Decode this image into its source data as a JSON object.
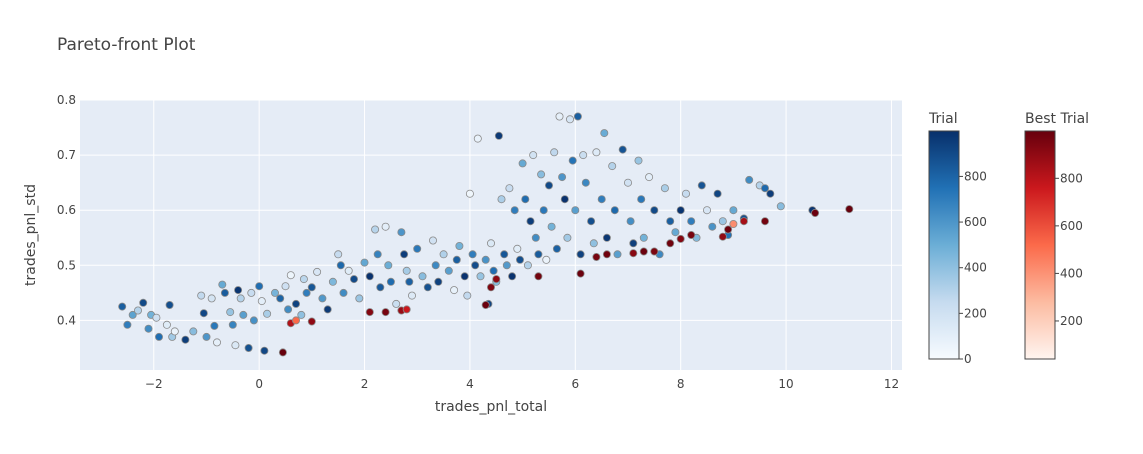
{
  "chart_data": {
    "type": "scatter",
    "title": "Pareto-front Plot",
    "xlabel": "trades_pnl_total",
    "ylabel": "trades_pnl_std",
    "xlim": [
      -3.4,
      12.2
    ],
    "ylim": [
      0.31,
      0.8
    ],
    "xticks": [
      -2,
      0,
      2,
      4,
      6,
      8,
      10,
      12
    ],
    "yticks": [
      0.4,
      0.5,
      0.6,
      0.7,
      0.8
    ],
    "grid": true,
    "colorbars": [
      {
        "title": "Trial",
        "colorscale": "Blues",
        "range": [
          0,
          999
        ],
        "ticks": [
          0,
          200,
          400,
          600,
          800
        ]
      },
      {
        "title": "Best Trial",
        "colorscale": "Reds",
        "range": [
          40,
          999
        ],
        "ticks": [
          200,
          400,
          600,
          800
        ]
      }
    ],
    "series": [
      {
        "colorscale": "Blues",
        "points": [
          [
            -2.6,
            0.425,
            820
          ],
          [
            -2.5,
            0.392,
            700
          ],
          [
            -2.4,
            0.41,
            550
          ],
          [
            -2.3,
            0.418,
            300
          ],
          [
            -2.2,
            0.432,
            900
          ],
          [
            -2.1,
            0.385,
            640
          ],
          [
            -2.05,
            0.41,
            480
          ],
          [
            -1.95,
            0.405,
            200
          ],
          [
            -1.9,
            0.37,
            760
          ],
          [
            -1.75,
            0.392,
            120
          ],
          [
            -1.7,
            0.428,
            880
          ],
          [
            -1.65,
            0.37,
            350
          ],
          [
            -1.6,
            0.38,
            60
          ],
          [
            -1.4,
            0.365,
            950
          ],
          [
            -1.25,
            0.38,
            420
          ],
          [
            -1.1,
            0.445,
            260
          ],
          [
            -1.05,
            0.413,
            910
          ],
          [
            -1.0,
            0.37,
            600
          ],
          [
            -0.9,
            0.44,
            180
          ],
          [
            -0.85,
            0.39,
            720
          ],
          [
            -0.8,
            0.36,
            90
          ],
          [
            -0.7,
            0.465,
            520
          ],
          [
            -0.65,
            0.45,
            830
          ],
          [
            -0.55,
            0.415,
            380
          ],
          [
            -0.5,
            0.392,
            670
          ],
          [
            -0.45,
            0.355,
            150
          ],
          [
            -0.4,
            0.455,
            980
          ],
          [
            -0.35,
            0.44,
            300
          ],
          [
            -0.3,
            0.41,
            560
          ],
          [
            -0.2,
            0.35,
            870
          ],
          [
            -0.15,
            0.45,
            240
          ],
          [
            -0.1,
            0.4,
            620
          ],
          [
            0.0,
            0.462,
            760
          ],
          [
            0.05,
            0.435,
            100
          ],
          [
            0.1,
            0.345,
            910
          ],
          [
            0.15,
            0.412,
            330
          ],
          [
            0.3,
            0.45,
            470
          ],
          [
            0.4,
            0.44,
            800
          ],
          [
            0.5,
            0.462,
            210
          ],
          [
            0.55,
            0.42,
            640
          ],
          [
            0.6,
            0.482,
            50
          ],
          [
            0.7,
            0.43,
            930
          ],
          [
            0.8,
            0.41,
            400
          ],
          [
            0.85,
            0.475,
            280
          ],
          [
            0.9,
            0.45,
            700
          ],
          [
            1.0,
            0.46,
            850
          ],
          [
            1.1,
            0.488,
            160
          ],
          [
            1.2,
            0.44,
            590
          ],
          [
            1.3,
            0.42,
            960
          ],
          [
            1.4,
            0.47,
            450
          ],
          [
            1.5,
            0.52,
            250
          ],
          [
            1.55,
            0.5,
            780
          ],
          [
            1.6,
            0.45,
            640
          ],
          [
            1.7,
            0.49,
            120
          ],
          [
            1.8,
            0.475,
            900
          ],
          [
            1.9,
            0.44,
            370
          ],
          [
            2.0,
            0.505,
            530
          ],
          [
            2.1,
            0.48,
            990
          ],
          [
            2.2,
            0.565,
            290
          ],
          [
            2.25,
            0.52,
            680
          ],
          [
            2.3,
            0.46,
            840
          ],
          [
            2.4,
            0.57,
            100
          ],
          [
            2.45,
            0.5,
            500
          ],
          [
            2.5,
            0.47,
            770
          ],
          [
            2.6,
            0.43,
            230
          ],
          [
            2.7,
            0.56,
            600
          ],
          [
            2.75,
            0.52,
            950
          ],
          [
            2.8,
            0.49,
            340
          ],
          [
            2.85,
            0.47,
            810
          ],
          [
            2.9,
            0.445,
            140
          ],
          [
            3.0,
            0.53,
            720
          ],
          [
            3.1,
            0.48,
            420
          ],
          [
            3.2,
            0.46,
            870
          ],
          [
            3.3,
            0.545,
            200
          ],
          [
            3.35,
            0.5,
            650
          ],
          [
            3.4,
            0.47,
            930
          ],
          [
            3.5,
            0.52,
            310
          ],
          [
            3.6,
            0.49,
            560
          ],
          [
            3.7,
            0.455,
            80
          ],
          [
            3.75,
            0.51,
            820
          ],
          [
            3.8,
            0.535,
            480
          ],
          [
            3.9,
            0.48,
            990
          ],
          [
            3.95,
            0.445,
            260
          ],
          [
            4.0,
            0.63,
            40
          ],
          [
            4.05,
            0.52,
            700
          ],
          [
            4.1,
            0.5,
            890
          ],
          [
            4.15,
            0.73,
            70
          ],
          [
            4.2,
            0.48,
            380
          ],
          [
            4.3,
            0.51,
            610
          ],
          [
            4.35,
            0.43,
            920
          ],
          [
            4.4,
            0.54,
            150
          ],
          [
            4.45,
            0.49,
            760
          ],
          [
            4.5,
            0.47,
            430
          ],
          [
            4.55,
            0.735,
            960
          ],
          [
            4.6,
            0.62,
            320
          ],
          [
            4.65,
            0.52,
            850
          ],
          [
            4.7,
            0.5,
            580
          ],
          [
            4.75,
            0.64,
            240
          ],
          [
            4.8,
            0.48,
            990
          ],
          [
            4.85,
            0.6,
            700
          ],
          [
            4.9,
            0.53,
            110
          ],
          [
            4.95,
            0.51,
            880
          ],
          [
            5.0,
            0.685,
            520
          ],
          [
            5.05,
            0.62,
            770
          ],
          [
            5.1,
            0.5,
            300
          ],
          [
            5.15,
            0.58,
            950
          ],
          [
            5.2,
            0.7,
            190
          ],
          [
            5.25,
            0.55,
            640
          ],
          [
            5.3,
            0.52,
            830
          ],
          [
            5.35,
            0.665,
            420
          ],
          [
            5.4,
            0.6,
            720
          ],
          [
            5.45,
            0.51,
            60
          ],
          [
            5.5,
            0.645,
            900
          ],
          [
            5.55,
            0.57,
            480
          ],
          [
            5.6,
            0.705,
            270
          ],
          [
            5.65,
            0.53,
            810
          ],
          [
            5.7,
            0.77,
            90
          ],
          [
            5.75,
            0.66,
            600
          ],
          [
            5.8,
            0.62,
            990
          ],
          [
            5.85,
            0.55,
            350
          ],
          [
            5.9,
            0.765,
            170
          ],
          [
            5.95,
            0.69,
            740
          ],
          [
            6.0,
            0.6,
            560
          ],
          [
            6.05,
            0.77,
            820
          ],
          [
            6.1,
            0.52,
            930
          ],
          [
            6.15,
            0.7,
            230
          ],
          [
            6.2,
            0.65,
            660
          ],
          [
            6.3,
            0.58,
            880
          ],
          [
            6.35,
            0.54,
            400
          ],
          [
            6.4,
            0.705,
            130
          ],
          [
            6.5,
            0.62,
            700
          ],
          [
            6.55,
            0.74,
            510
          ],
          [
            6.6,
            0.55,
            970
          ],
          [
            6.7,
            0.68,
            300
          ],
          [
            6.75,
            0.6,
            780
          ],
          [
            6.8,
            0.52,
            560
          ],
          [
            6.9,
            0.71,
            860
          ],
          [
            7.0,
            0.65,
            200
          ],
          [
            7.05,
            0.58,
            630
          ],
          [
            7.1,
            0.54,
            940
          ],
          [
            7.2,
            0.69,
            380
          ],
          [
            7.25,
            0.62,
            720
          ],
          [
            7.3,
            0.55,
            480
          ],
          [
            7.4,
            0.66,
            100
          ],
          [
            7.5,
            0.6,
            900
          ],
          [
            7.6,
            0.52,
            650
          ],
          [
            7.7,
            0.64,
            330
          ],
          [
            7.8,
            0.58,
            820
          ],
          [
            7.9,
            0.56,
            520
          ],
          [
            8.0,
            0.6,
            980
          ],
          [
            8.1,
            0.63,
            250
          ],
          [
            8.2,
            0.58,
            700
          ],
          [
            8.3,
            0.55,
            440
          ],
          [
            8.4,
            0.645,
            860
          ],
          [
            8.5,
            0.6,
            160
          ],
          [
            8.6,
            0.57,
            610
          ],
          [
            8.7,
            0.63,
            920
          ],
          [
            8.8,
            0.58,
            370
          ],
          [
            8.9,
            0.555,
            750
          ],
          [
            9.0,
            0.6,
            520
          ],
          [
            9.2,
            0.585,
            880
          ],
          [
            9.3,
            0.655,
            640
          ],
          [
            9.5,
            0.645,
            300
          ],
          [
            9.6,
            0.64,
            780
          ],
          [
            9.7,
            0.63,
            950
          ],
          [
            9.9,
            0.607,
            420
          ],
          [
            10.5,
            0.6,
            980
          ]
        ]
      },
      {
        "colorscale": "Reds",
        "points": [
          [
            0.45,
            0.342,
            999
          ],
          [
            0.6,
            0.395,
            820
          ],
          [
            0.7,
            0.4,
            520
          ],
          [
            1.0,
            0.398,
            900
          ],
          [
            2.1,
            0.415,
            930
          ],
          [
            2.4,
            0.415,
            960
          ],
          [
            2.7,
            0.418,
            880
          ],
          [
            2.8,
            0.42,
            760
          ],
          [
            4.3,
            0.428,
            990
          ],
          [
            4.4,
            0.46,
            940
          ],
          [
            4.5,
            0.475,
            910
          ],
          [
            5.3,
            0.48,
            970
          ],
          [
            6.1,
            0.485,
            990
          ],
          [
            6.4,
            0.515,
            960
          ],
          [
            6.6,
            0.52,
            980
          ],
          [
            7.1,
            0.522,
            920
          ],
          [
            7.3,
            0.525,
            990
          ],
          [
            7.5,
            0.525,
            950
          ],
          [
            7.8,
            0.54,
            980
          ],
          [
            8.0,
            0.548,
            930
          ],
          [
            8.2,
            0.555,
            960
          ],
          [
            8.8,
            0.552,
            900
          ],
          [
            8.9,
            0.565,
            990
          ],
          [
            9.0,
            0.575,
            420
          ],
          [
            9.2,
            0.58,
            850
          ],
          [
            9.6,
            0.58,
            970
          ],
          [
            10.55,
            0.595,
            990
          ],
          [
            11.2,
            0.602,
            999
          ]
        ]
      }
    ]
  }
}
